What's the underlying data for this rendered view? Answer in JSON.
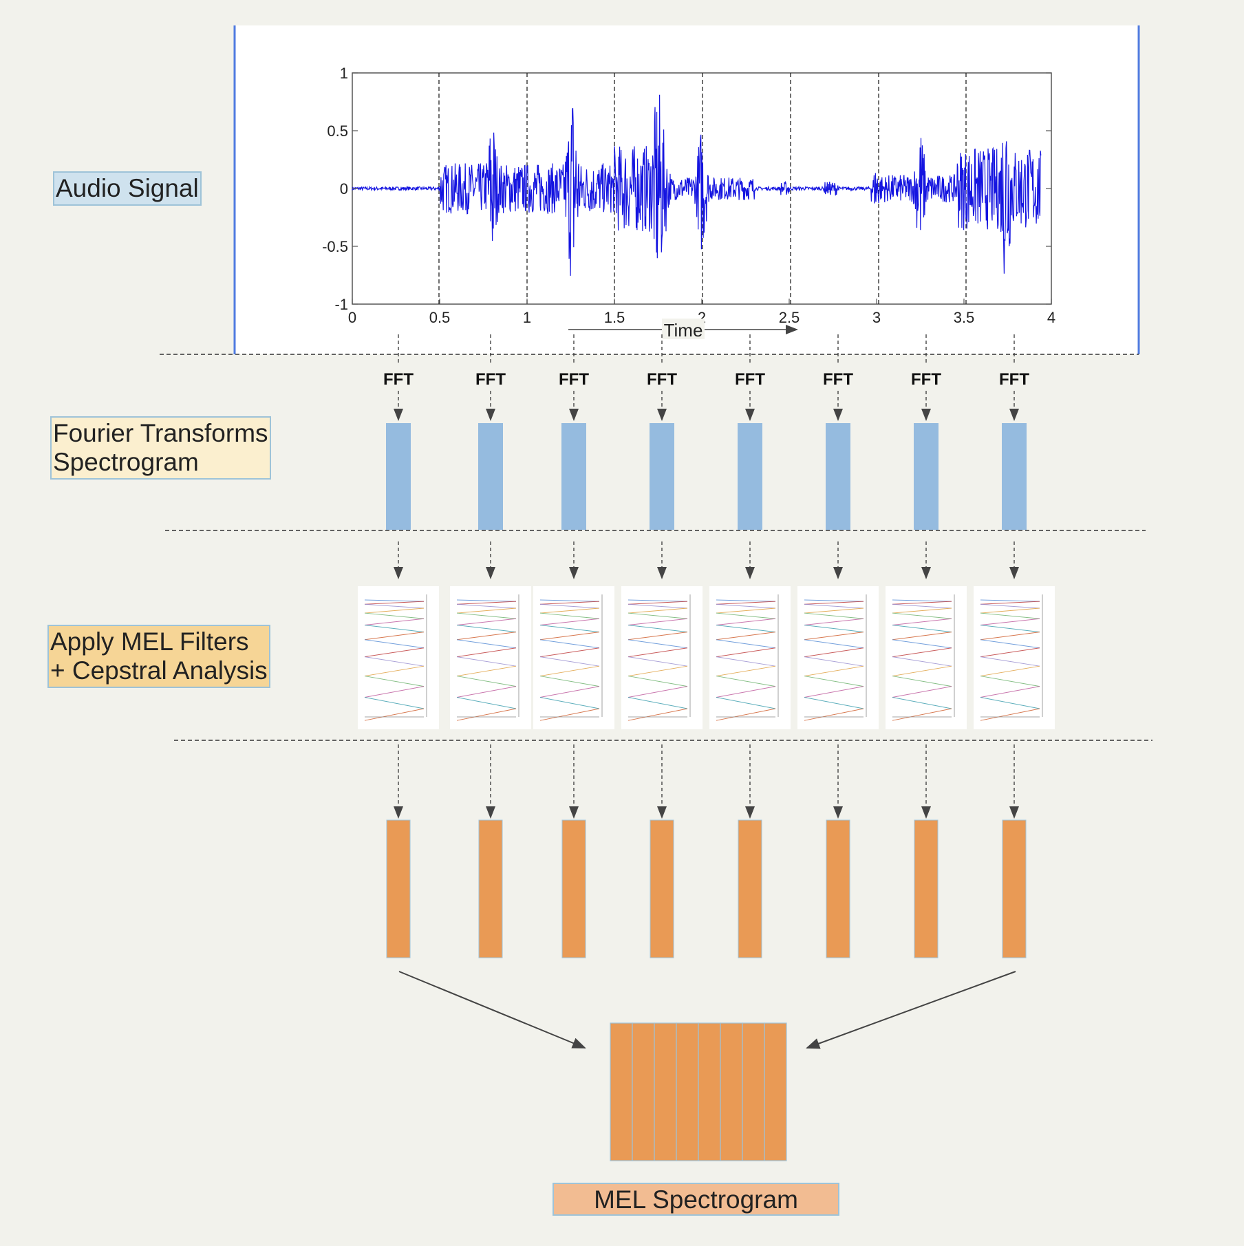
{
  "stages": {
    "audio_signal": "Audio Signal",
    "fourier_line1": "Fourier Transforms",
    "fourier_line2": "Spectrogram",
    "mel_line1": "Apply MEL Filters",
    "mel_line2": "+ Cepstral Analysis",
    "mel_spectrogram": "MEL Spectrogram"
  },
  "waveform": {
    "y_ticks": [
      "1",
      "0.5",
      "0",
      "-0.5",
      "-1"
    ],
    "x_ticks": [
      "0",
      "0.5",
      "1",
      "1.5",
      "2",
      "2.5",
      "3",
      "3.5",
      "4"
    ],
    "time_label": "Time"
  },
  "fft_label": "FFT",
  "frame_count": 8,
  "colors": {
    "background": "#f2f2ec",
    "waveform": "#1515e0",
    "fft_bar": "#95bbdf",
    "mel_bar": "#e99a55",
    "arrow": "#444444",
    "audio_label_bg": "#cfe2ee",
    "fourier_label_bg": "#fbefcf",
    "mel_label_bg": "#f6d596",
    "melspec_label_bg": "#f2bc92"
  }
}
